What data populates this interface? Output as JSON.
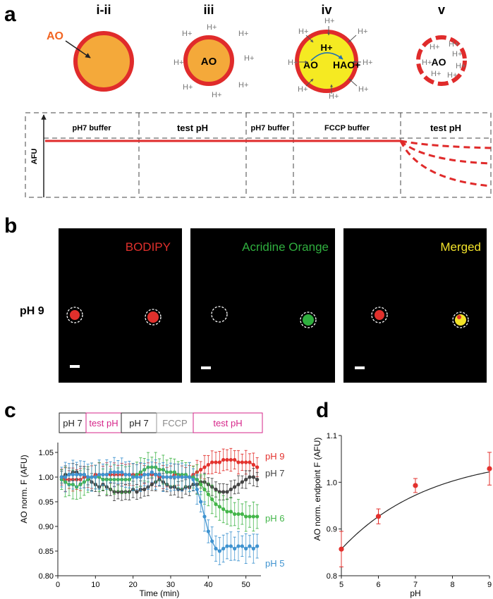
{
  "panels": {
    "a": {
      "label": "a",
      "stages": [
        "i-ii",
        "iii",
        "iv",
        "v"
      ],
      "ao_label": "AO",
      "hao_label": "HAO+",
      "proton": "H+",
      "afu_label": "AFU",
      "segments": [
        "pH7 buffer",
        "test pH",
        "pH7 buffer",
        "FCCP buffer",
        "test pH"
      ]
    },
    "b": {
      "label": "b",
      "row_label": "pH 9",
      "images": [
        {
          "title": "BODIPY",
          "color": "#e0302c"
        },
        {
          "title": "Acridine Orange",
          "color": "#2fae3e"
        },
        {
          "title": "Merged",
          "color": "#f2e22a"
        }
      ]
    },
    "c": {
      "label": "c",
      "protocol": [
        {
          "label": "pH 7",
          "color": "#222222"
        },
        {
          "label": "test pH",
          "color": "#d6268a"
        },
        {
          "label": "pH 7",
          "color": "#222222"
        },
        {
          "label": "FCCP",
          "color": "#888888"
        },
        {
          "label": "test pH",
          "color": "#d6268a"
        }
      ]
    },
    "d": {
      "label": "d"
    }
  },
  "chart_data": [
    {
      "type": "line",
      "id": "c",
      "title": "",
      "xlabel": "Time (min)",
      "ylabel": "AO norm. F (AFU)",
      "xlim": [
        0,
        54
      ],
      "ylim": [
        0.8,
        1.07
      ],
      "xticks": [
        0,
        10,
        20,
        30,
        40,
        50
      ],
      "yticks": [
        0.8,
        0.85,
        0.9,
        0.95,
        1.0,
        1.05
      ],
      "ytick_labels": [
        "0.80",
        "0.85",
        "0.90",
        "0.95",
        "1.00",
        "1.05"
      ],
      "x": [
        1,
        2,
        3,
        4,
        5,
        6,
        7,
        8,
        9,
        10,
        11,
        12,
        13,
        14,
        15,
        16,
        17,
        18,
        19,
        20,
        21,
        22,
        23,
        24,
        25,
        26,
        27,
        28,
        29,
        30,
        31,
        32,
        33,
        34,
        35,
        36,
        37,
        38,
        39,
        40,
        41,
        42,
        43,
        44,
        45,
        46,
        47,
        48,
        49,
        50,
        51,
        52,
        53
      ],
      "series": [
        {
          "name": "pH 9",
          "color": "#e3312d",
          "err": 0.02,
          "values": [
            1.0,
            0.995,
            0.995,
            0.995,
            0.995,
            0.995,
            1.0,
            1.0,
            1.0,
            1.005,
            1.005,
            1.005,
            1.005,
            1.005,
            1.005,
            1.005,
            1.005,
            1.005,
            1.005,
            1.005,
            1.005,
            1.005,
            1.005,
            1.005,
            1.005,
            1.005,
            1.0,
            1.0,
            1.0,
            1.0,
            1.005,
            1.005,
            1.0,
            1.0,
            1.0,
            1.005,
            1.01,
            1.015,
            1.02,
            1.025,
            1.03,
            1.03,
            1.03,
            1.035,
            1.035,
            1.035,
            1.035,
            1.03,
            1.03,
            1.03,
            1.03,
            1.025,
            1.02
          ]
        },
        {
          "name": "pH 7",
          "color": "#444444",
          "err": 0.015,
          "values": [
            1.0,
            1.005,
            1.005,
            1.01,
            1.01,
            1.005,
            1.005,
            1.0,
            0.99,
            0.985,
            0.98,
            0.985,
            0.98,
            0.975,
            0.97,
            0.97,
            0.97,
            0.97,
            0.97,
            0.975,
            0.97,
            0.975,
            0.975,
            0.98,
            0.985,
            0.99,
            0.995,
            0.99,
            0.985,
            0.98,
            0.98,
            0.975,
            0.975,
            0.98,
            0.98,
            0.985,
            0.985,
            0.99,
            0.99,
            0.985,
            0.98,
            0.975,
            0.97,
            0.97,
            0.97,
            0.975,
            0.98,
            0.985,
            0.99,
            0.995,
            1.0,
            1.0,
            0.995
          ]
        },
        {
          "name": "pH 6",
          "color": "#43b649",
          "err": 0.025,
          "values": [
            0.995,
            0.99,
            0.985,
            0.985,
            0.98,
            0.985,
            0.99,
            0.995,
            1.0,
            1.0,
            1.0,
            0.995,
            0.995,
            0.995,
            0.995,
            0.995,
            0.995,
            0.995,
            0.995,
            1.0,
            1.005,
            1.01,
            1.015,
            1.02,
            1.02,
            1.02,
            1.015,
            1.015,
            1.01,
            1.01,
            1.01,
            1.005,
            1.005,
            1.005,
            1.0,
            1.0,
            0.995,
            0.985,
            0.975,
            0.965,
            0.955,
            0.945,
            0.94,
            0.935,
            0.93,
            0.93,
            0.925,
            0.925,
            0.925,
            0.92,
            0.92,
            0.92,
            0.92
          ]
        },
        {
          "name": "pH 5",
          "color": "#3f93d0",
          "err": 0.025,
          "values": [
            1.0,
            1.0,
            1.005,
            1.005,
            1.005,
            1.005,
            1.005,
            1.0,
            1.0,
            1.0,
            1.005,
            1.005,
            1.005,
            1.01,
            1.01,
            1.01,
            1.01,
            1.005,
            1.005,
            1.0,
            1.0,
            1.0,
            1.005,
            1.005,
            1.01,
            1.005,
            1.005,
            1.0,
            1.0,
            1.0,
            1.0,
            1.0,
            1.0,
            1.0,
            1.0,
            0.995,
            0.975,
            0.95,
            0.92,
            0.89,
            0.87,
            0.855,
            0.85,
            0.855,
            0.86,
            0.86,
            0.855,
            0.86,
            0.86,
            0.855,
            0.86,
            0.855,
            0.86
          ]
        }
      ]
    },
    {
      "type": "scatter",
      "id": "d",
      "title": "",
      "xlabel": "pH",
      "ylabel": "AO norm. endpoint F (AFU)",
      "xlim": [
        5,
        9
      ],
      "ylim": [
        0.8,
        1.1
      ],
      "xticks": [
        5,
        6,
        7,
        8,
        9
      ],
      "yticks": [
        0.8,
        0.9,
        1.0,
        1.1
      ],
      "ytick_labels": [
        "0.8",
        "0.9",
        "1.0",
        "1.1"
      ],
      "x": [
        5,
        6,
        7,
        9
      ],
      "values": [
        0.857,
        0.927,
        0.993,
        1.029
      ],
      "errors": [
        0.038,
        0.016,
        0.015,
        0.035
      ],
      "fit": {
        "type": "exponential",
        "note": "black fitted curve"
      }
    }
  ]
}
